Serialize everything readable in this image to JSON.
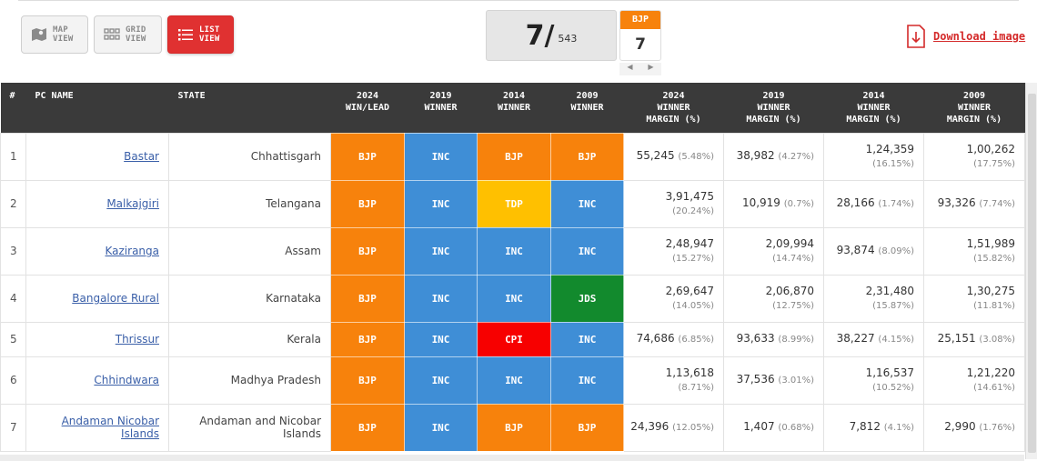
{
  "views": {
    "map": [
      "MAP",
      "VIEW"
    ],
    "grid": [
      "GRID",
      "VIEW"
    ],
    "list": [
      "LIST",
      "VIEW"
    ]
  },
  "counter": {
    "count": "7/",
    "total": "543"
  },
  "party_filter": {
    "party": "BJP",
    "count": "7"
  },
  "download_label": "Download image",
  "colors": {
    "BJP": "#f7820c",
    "INC": "#3f8ed6",
    "TDP": "#ffc000",
    "JDS": "#128a2d",
    "CPI": "#f70000",
    "accent": "#e03131"
  },
  "columns": [
    [
      "#"
    ],
    [
      "PC NAME"
    ],
    [
      "STATE"
    ],
    [
      "2024",
      "WIN/LEAD"
    ],
    [
      "2019",
      "WINNER"
    ],
    [
      "2014",
      "WINNER"
    ],
    [
      "2009",
      "WINNER"
    ],
    [
      "2024",
      "WINNER",
      "MARGIN (%)"
    ],
    [
      "2019",
      "WINNER",
      "MARGIN (%)"
    ],
    [
      "2014",
      "WINNER",
      "MARGIN (%)"
    ],
    [
      "2009",
      "WINNER",
      "MARGIN (%)"
    ]
  ],
  "rows": [
    {
      "num": "1",
      "pc": "Bastar",
      "state": "Chhattisgarh",
      "w2024": "BJP",
      "w2019": "INC",
      "w2014": "BJP",
      "w2009": "BJP",
      "m2024": [
        "55,245",
        "(5.48%)",
        "inline"
      ],
      "m2019": [
        "38,982",
        "(4.27%)",
        "inline"
      ],
      "m2014": [
        "1,24,359",
        "(16.15%)",
        "stack"
      ],
      "m2009": [
        "1,00,262",
        "(17.75%)",
        "stack"
      ]
    },
    {
      "num": "2",
      "pc": "Malkajgiri",
      "state": "Telangana",
      "w2024": "BJP",
      "w2019": "INC",
      "w2014": "TDP",
      "w2009": "INC",
      "m2024": [
        "3,91,475",
        "(20.24%)",
        "stack"
      ],
      "m2019": [
        "10,919",
        "(0.7%)",
        "inline"
      ],
      "m2014": [
        "28,166",
        "(1.74%)",
        "inline"
      ],
      "m2009": [
        "93,326",
        "(7.74%)",
        "inline"
      ]
    },
    {
      "num": "3",
      "pc": "Kaziranga",
      "state": "Assam",
      "w2024": "BJP",
      "w2019": "INC",
      "w2014": "INC",
      "w2009": "INC",
      "m2024": [
        "2,48,947",
        "(15.27%)",
        "stack"
      ],
      "m2019": [
        "2,09,994",
        "(14.74%)",
        "stack"
      ],
      "m2014": [
        "93,874",
        "(8.09%)",
        "inline"
      ],
      "m2009": [
        "1,51,989",
        "(15.82%)",
        "stack"
      ]
    },
    {
      "num": "4",
      "pc": "Bangalore Rural",
      "state": "Karnataka",
      "w2024": "BJP",
      "w2019": "INC",
      "w2014": "INC",
      "w2009": "JDS",
      "m2024": [
        "2,69,647",
        "(14.05%)",
        "stack"
      ],
      "m2019": [
        "2,06,870",
        "(12.75%)",
        "stack"
      ],
      "m2014": [
        "2,31,480",
        "(15.87%)",
        "stack"
      ],
      "m2009": [
        "1,30,275",
        "(11.81%)",
        "stack"
      ]
    },
    {
      "num": "5",
      "pc": "Thrissur",
      "state": "Kerala",
      "w2024": "BJP",
      "w2019": "INC",
      "w2014": "CPI",
      "w2009": "INC",
      "m2024": [
        "74,686",
        "(6.85%)",
        "inline"
      ],
      "m2019": [
        "93,633",
        "(8.99%)",
        "inline"
      ],
      "m2014": [
        "38,227",
        "(4.15%)",
        "inline"
      ],
      "m2009": [
        "25,151",
        "(3.08%)",
        "inline"
      ]
    },
    {
      "num": "6",
      "pc": "Chhindwara",
      "state": "Madhya Pradesh",
      "w2024": "BJP",
      "w2019": "INC",
      "w2014": "INC",
      "w2009": "INC",
      "m2024": [
        "1,13,618",
        "(8.71%)",
        "stack"
      ],
      "m2019": [
        "37,536",
        "(3.01%)",
        "inline"
      ],
      "m2014": [
        "1,16,537",
        "(10.52%)",
        "stack"
      ],
      "m2009": [
        "1,21,220",
        "(14.61%)",
        "stack"
      ]
    },
    {
      "num": "7",
      "pc": "Andaman Nicobar Islands",
      "state": "Andaman and Nicobar Islands",
      "w2024": "BJP",
      "w2019": "INC",
      "w2014": "BJP",
      "w2009": "BJP",
      "m2024": [
        "24,396",
        "(12.05%)",
        "inline"
      ],
      "m2019": [
        "1,407",
        "(0.68%)",
        "inline"
      ],
      "m2014": [
        "7,812",
        "(4.1%)",
        "inline"
      ],
      "m2009": [
        "2,990",
        "(1.76%)",
        "inline"
      ]
    }
  ]
}
